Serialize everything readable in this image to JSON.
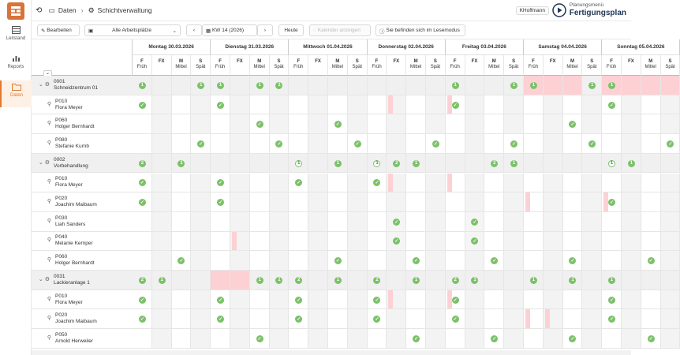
{
  "sidebar": {
    "items": [
      {
        "label": "Leitstand",
        "icon": "dashboard-icon"
      },
      {
        "label": "Reports",
        "icon": "chart-icon"
      },
      {
        "label": "Daten",
        "icon": "folder-icon",
        "active": true
      }
    ]
  },
  "topbar": {
    "crumb1": "Daten",
    "crumb2": "Schichtverwaltung",
    "user": "KHoffmann",
    "brand_small": "Planungsmenü",
    "brand_big": "Fertigungsplan"
  },
  "toolbar": {
    "edit": "Bearbeiten",
    "workplaces": "Alle Arbeitsplätze",
    "week": "KW 14 (2026)",
    "today": "Heute",
    "calendar": "Kalender anzeigen",
    "readmode": "Sie befinden sich im Lesemodus"
  },
  "days": [
    "Montag 30.03.2026",
    "Dienstag 31.03.2026",
    "Mittwoch 01.04.2026",
    "Donnerstag 02.04.2026",
    "Freitag 03.04.2026",
    "Samstag 04.04.2026",
    "Sonntag 05.04.2026"
  ],
  "shifts": [
    {
      "code": "F",
      "name": "Früh"
    },
    {
      "code": "FX",
      "name": ""
    },
    {
      "code": "M",
      "name": "Mittel"
    },
    {
      "code": "S",
      "name": "Spät"
    }
  ],
  "rows": [
    {
      "type": "group",
      "id": "0001",
      "name": "Schneidzentrum 01",
      "cells": [
        "1",
        "",
        "",
        "1",
        "1",
        "",
        "1",
        "1",
        "",
        "",
        "",
        "",
        "",
        "",
        "",
        "",
        "1",
        "",
        "",
        "1",
        "1",
        "",
        "",
        "1",
        "1",
        "",
        ""
      ],
      "pink": [
        20,
        21,
        22,
        24,
        25,
        26,
        27
      ]
    },
    {
      "type": "person",
      "id": "P010",
      "name": "Flora Meyer",
      "cells": [
        "c",
        "",
        "",
        "",
        "c",
        "",
        "",
        "",
        "",
        "",
        "",
        "",
        "",
        "",
        "",
        "",
        "c",
        "",
        "",
        "",
        "",
        "",
        "",
        "",
        "c",
        "",
        ""
      ],
      "pink": [
        13,
        16
      ],
      "gray": [
        0
      ]
    },
    {
      "type": "person",
      "id": "P060",
      "name": "Holger Bernhardt",
      "cells": [
        "",
        "",
        "",
        "",
        "",
        "",
        "c",
        "",
        "",
        "",
        "c",
        "",
        "",
        "",
        "",
        "",
        "",
        "",
        "",
        "",
        "",
        "",
        "c",
        "",
        "",
        ""
      ]
    },
    {
      "type": "person",
      "id": "P080",
      "name": "Stefanie Kurnb",
      "cells": [
        "",
        "",
        "",
        "c",
        "",
        "",
        "",
        "c",
        "",
        "",
        "",
        "c",
        "",
        "",
        "",
        "c",
        "",
        "",
        "",
        "c",
        "",
        "",
        "",
        "c",
        "",
        "",
        "",
        "c"
      ]
    },
    {
      "type": "group",
      "id": "0002",
      "name": "Vorbehandlung",
      "cells": [
        "2",
        "",
        "1",
        "",
        "",
        "",
        "",
        "",
        "o",
        "",
        "1",
        "",
        "o",
        "2",
        "1",
        "",
        "",
        "",
        "2",
        "1",
        "",
        "",
        "",
        "",
        "o",
        "1",
        ""
      ]
    },
    {
      "type": "person",
      "id": "P010",
      "name": "Flora Meyer",
      "cells": [
        "c",
        "",
        "",
        "",
        "c",
        "",
        "",
        "",
        "c",
        "",
        "",
        "",
        "c",
        "",
        "",
        "",
        "",
        "",
        "",
        "",
        "",
        "",
        "",
        "",
        "",
        "",
        ""
      ],
      "pink": [
        13,
        16
      ]
    },
    {
      "type": "person",
      "id": "P020",
      "name": "Joachim Maibaum",
      "cells": [
        "c",
        "",
        "",
        "",
        "c",
        "",
        "",
        "",
        "",
        "",
        "",
        "",
        "",
        "",
        "",
        "",
        "",
        "",
        "",
        "",
        "",
        "",
        "",
        "",
        "c",
        "",
        ""
      ],
      "pink": [
        20,
        24
      ]
    },
    {
      "type": "person",
      "id": "P030",
      "name": "Liah Sanders",
      "cells": [
        "",
        "",
        "",
        "",
        "",
        "",
        "",
        "",
        "",
        "",
        "",
        "",
        "",
        "c",
        "",
        "",
        "",
        "c",
        "",
        "",
        "",
        "",
        "",
        "",
        "",
        "",
        ""
      ]
    },
    {
      "type": "person",
      "id": "P040",
      "name": "Melanie Kernper",
      "cells": [
        "",
        "",
        "",
        "",
        "",
        "",
        "",
        "",
        "",
        "",
        "",
        "",
        "",
        "c",
        "",
        "",
        "",
        "c",
        "",
        "",
        "",
        "",
        "",
        "",
        "",
        "",
        ""
      ],
      "pink": [
        5
      ]
    },
    {
      "type": "person",
      "id": "P060",
      "name": "Holger Bernhardt",
      "cells": [
        "",
        "",
        "c",
        "",
        "",
        "",
        "",
        "",
        "",
        "",
        "c",
        "",
        "",
        "",
        "c",
        "",
        "",
        "",
        "c",
        "",
        "",
        "",
        "c",
        "",
        "",
        "",
        "c"
      ]
    },
    {
      "type": "group",
      "id": "0031",
      "name": "Lackieranlage 1",
      "cells": [
        "2",
        "1",
        "",
        "",
        "",
        "",
        "1",
        "1",
        "2",
        "",
        "1",
        "",
        "2",
        "",
        "1",
        "",
        "2",
        "1",
        "",
        "",
        "1",
        "",
        "1",
        "",
        "1",
        "",
        ""
      ],
      "pink": [
        4,
        5
      ]
    },
    {
      "type": "person",
      "id": "P010",
      "name": "Flora Meyer",
      "cells": [
        "c",
        "",
        "",
        "",
        "c",
        "",
        "",
        "",
        "c",
        "",
        "",
        "",
        "c",
        "",
        "",
        "",
        "c",
        "",
        "",
        "",
        "",
        "",
        "",
        "",
        "c",
        "",
        ""
      ],
      "pink": [
        13,
        16
      ]
    },
    {
      "type": "person",
      "id": "P020",
      "name": "Joachim Maibaum",
      "cells": [
        "c",
        "",
        "",
        "",
        "c",
        "",
        "",
        "",
        "c",
        "",
        "",
        "",
        "c",
        "",
        "",
        "",
        "c",
        "",
        "",
        "",
        "",
        "",
        "",
        "",
        "c",
        "",
        ""
      ],
      "pink": [
        20,
        21
      ]
    },
    {
      "type": "person",
      "id": "P050",
      "name": "Arnold Herweiler",
      "cells": [
        "",
        "",
        "",
        "",
        "",
        "",
        "c",
        "",
        "",
        "",
        "",
        "",
        "",
        "",
        "c",
        "",
        "",
        "",
        "c",
        "",
        "",
        "",
        "c",
        "",
        "",
        "",
        "c"
      ]
    }
  ]
}
